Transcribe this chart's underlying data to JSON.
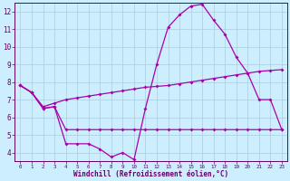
{
  "bg_color": "#cceeff",
  "grid_color": "#aaccdd",
  "line_color": "#aa00aa",
  "xlim": [
    0,
    23
  ],
  "ylim": [
    3.5,
    12.5
  ],
  "xticks": [
    0,
    1,
    2,
    3,
    4,
    5,
    6,
    7,
    8,
    9,
    10,
    11,
    12,
    13,
    14,
    15,
    16,
    17,
    18,
    19,
    20,
    21,
    22,
    23
  ],
  "yticks": [
    4,
    5,
    6,
    7,
    8,
    9,
    10,
    11,
    12
  ],
  "xlabel": "Windchill (Refroidissement éolien,°C)",
  "line1_x": [
    0,
    1,
    2,
    3,
    4,
    5,
    6,
    7,
    8,
    9,
    10,
    11,
    12,
    13,
    14,
    15,
    16,
    17,
    18,
    19,
    20,
    21,
    22,
    23
  ],
  "line1_y": [
    7.8,
    7.4,
    6.5,
    6.6,
    4.5,
    4.5,
    4.5,
    4.2,
    3.75,
    4.0,
    3.6,
    6.5,
    9.0,
    11.1,
    11.8,
    12.3,
    12.4,
    11.5,
    10.7,
    9.4,
    8.5,
    7.0,
    7.0,
    5.3
  ],
  "line2_x": [
    0,
    1,
    2,
    3,
    4,
    5,
    6,
    7,
    8,
    9,
    10,
    11,
    12,
    13,
    14,
    15,
    16,
    17,
    18,
    19,
    20,
    21,
    22,
    23
  ],
  "line2_y": [
    7.8,
    7.4,
    6.5,
    6.6,
    5.3,
    5.3,
    5.3,
    5.3,
    5.3,
    5.3,
    5.3,
    5.3,
    5.3,
    5.3,
    5.3,
    5.3,
    5.3,
    5.3,
    5.3,
    5.3,
    5.3,
    5.3,
    5.3,
    5.3
  ],
  "line3_x": [
    0,
    1,
    2,
    3,
    4,
    5,
    6,
    7,
    8,
    9,
    10,
    11,
    12,
    13,
    14,
    15,
    16,
    17,
    18,
    19,
    20,
    21,
    22,
    23
  ],
  "line3_y": [
    7.8,
    7.4,
    6.6,
    6.8,
    7.0,
    7.1,
    7.2,
    7.3,
    7.4,
    7.5,
    7.6,
    7.7,
    7.75,
    7.8,
    7.9,
    8.0,
    8.1,
    8.2,
    8.3,
    8.4,
    8.5,
    8.6,
    8.65,
    8.7
  ]
}
